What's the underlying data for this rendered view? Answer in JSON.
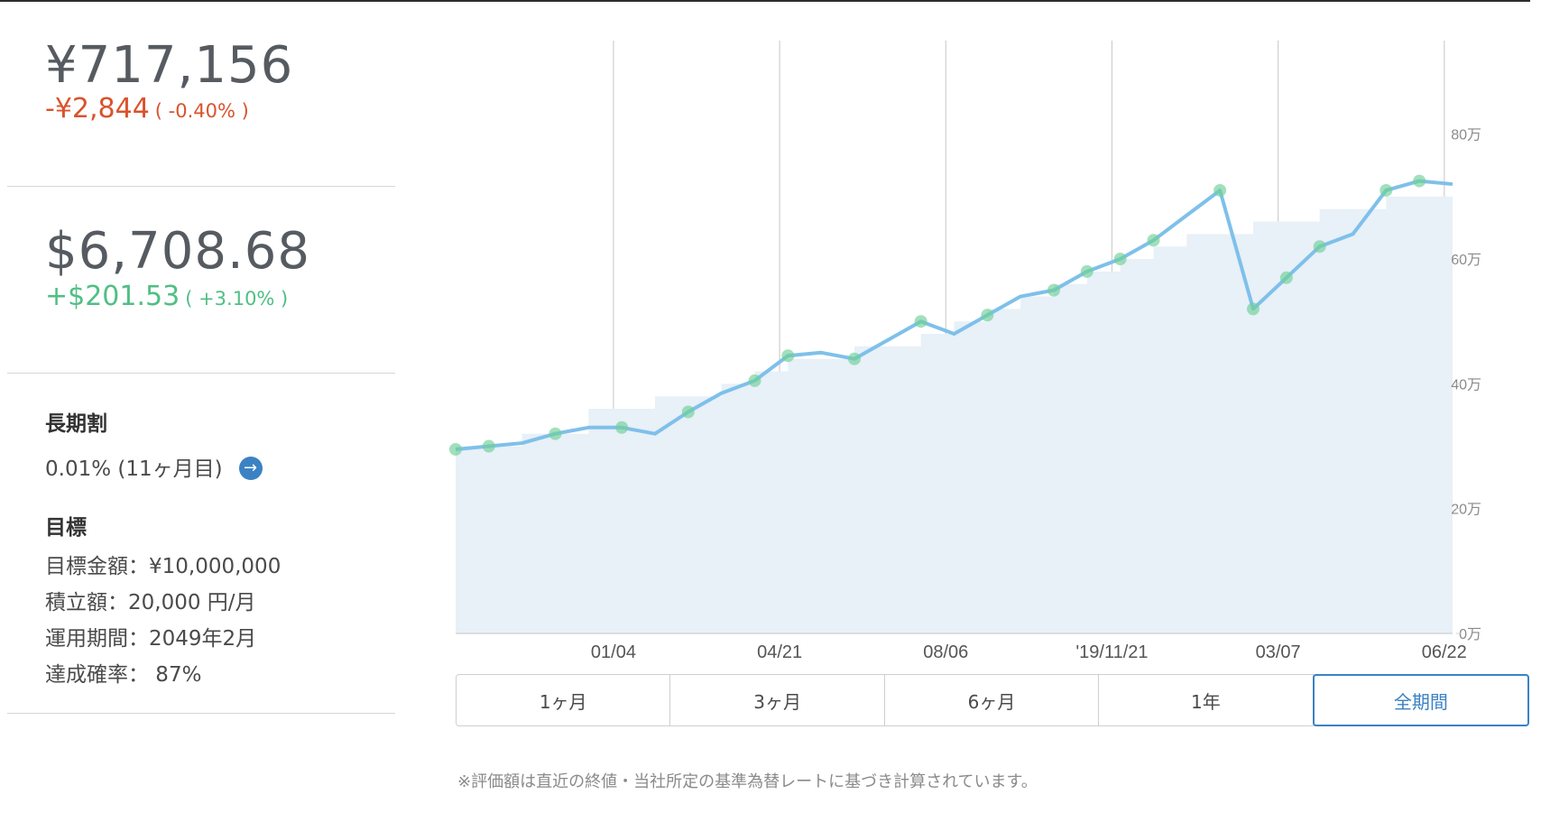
{
  "jpy": {
    "value": "¥717,156",
    "change": "-¥2,844",
    "change_pct": "( -0.40% )"
  },
  "usd": {
    "value": "$6,708.68",
    "change": "+$201.53",
    "change_pct": "( +3.10% )"
  },
  "long_term": {
    "title": "長期割",
    "value": "0.01% (11ヶ月目)",
    "arrow_icon": "arrow-right-icon"
  },
  "goal": {
    "title": "目標",
    "rows": [
      "目標金額：¥10,000,000",
      "積立額：20,000 円/月",
      "運用期間：2049年2月",
      "達成確率： 87%"
    ]
  },
  "tabs": [
    "1ヶ月",
    "3ヶ月",
    "6ヶ月",
    "1年",
    "全期間"
  ],
  "active_tab": "全期間",
  "note": "※評価額は直近の終値・当社所定の基準為替レートに基づき計算されています。",
  "colors": {
    "line": "#7ec0ea",
    "area": "#e8f0f8",
    "marker": "#6fcf97",
    "accent": "#3b82c4",
    "negative": "#d9532c",
    "positive": "#4fbf84"
  },
  "chart_data": {
    "type": "line",
    "y_ticks": [
      "0万",
      "20万",
      "40万",
      "60万",
      "80万"
    ],
    "y_tick_values": [
      0,
      20,
      40,
      60,
      80
    ],
    "ylim": [
      0,
      95
    ],
    "x_tick_labels": [
      "01/04",
      "04/21",
      "08/06",
      "'19/11/21",
      "03/07",
      "06/22"
    ],
    "x_range_index": [
      0,
      30
    ],
    "series": [
      {
        "values": [
          29.5,
          30,
          30.5,
          32,
          33,
          33,
          32,
          35.5,
          38.5,
          40.5,
          44.5,
          45,
          44,
          47,
          50,
          48,
          51,
          54,
          55,
          58,
          60,
          63,
          67,
          71,
          52,
          57,
          62,
          64,
          71,
          72.5,
          72
        ]
      }
    ],
    "invested": [
      30,
      30,
      32,
      32,
      36,
      36,
      38,
      38,
      40,
      42,
      44,
      44,
      46,
      46,
      48,
      50,
      52,
      54,
      56,
      58,
      60,
      62,
      64,
      64,
      66,
      66,
      68,
      68,
      70,
      70,
      70
    ],
    "marker_indices": [
      0,
      1,
      3,
      5,
      7,
      9,
      10,
      12,
      14,
      16,
      18,
      19,
      20,
      21,
      23,
      24,
      25,
      26,
      28,
      29
    ]
  }
}
